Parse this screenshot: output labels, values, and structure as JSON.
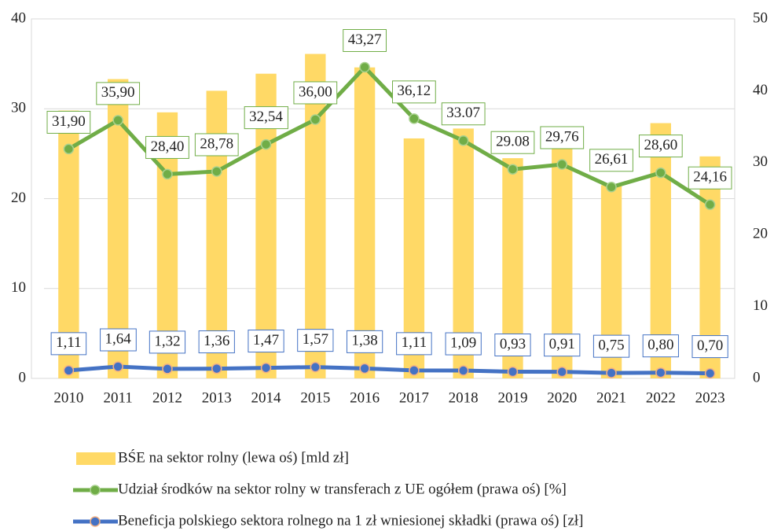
{
  "chart_data": {
    "type": "bar",
    "categories": [
      "2010",
      "2011",
      "2012",
      "2013",
      "2014",
      "2015",
      "2016",
      "2017",
      "2018",
      "2019",
      "2020",
      "2021",
      "2022",
      "2023"
    ],
    "ylim": [
      0,
      40
    ],
    "yticks": [
      0,
      10,
      20,
      30,
      40
    ],
    "y2lim": [
      0,
      50
    ],
    "y2ticks": [
      0,
      10,
      20,
      30,
      40,
      50
    ],
    "grid": true,
    "legend": "bottom",
    "series": [
      {
        "name": "BŚE na sektor rolny (lewa oś) [mld zł]",
        "type": "bar",
        "axis": "y",
        "color": "#ffd966",
        "values": [
          29.8,
          33.3,
          29.6,
          32.0,
          33.9,
          36.1,
          34.6,
          26.7,
          27.8,
          24.5,
          25.7,
          21.5,
          28.4,
          24.7
        ]
      },
      {
        "name": "Udział środków na sektor rolny w transferach z UE ogółem (prawa oś) [%]",
        "type": "line",
        "axis": "y2",
        "color": "#70ad47",
        "values": [
          31.9,
          35.9,
          28.4,
          28.78,
          32.54,
          36.0,
          43.27,
          36.12,
          33.07,
          29.08,
          29.76,
          26.61,
          28.6,
          24.16
        ],
        "value_labels": [
          "31,90",
          "35,90",
          "28,40",
          "28,78",
          "32,54",
          "36,00",
          "43,27",
          "36,12",
          "33.07",
          "29.08",
          "29,76",
          "26,61",
          "28,60",
          "24,16"
        ]
      },
      {
        "name": "Beneficja polskiego sektora rolnego na 1 zł wniesionej składki (prawa oś) [zł]",
        "type": "line",
        "axis": "y2",
        "color": "#4472c4",
        "values": [
          1.11,
          1.64,
          1.32,
          1.36,
          1.47,
          1.57,
          1.38,
          1.11,
          1.09,
          0.93,
          0.91,
          0.75,
          0.8,
          0.7
        ],
        "value_labels": [
          "1,11",
          "1,64",
          "1,32",
          "1,36",
          "1,47",
          "1,57",
          "1,38",
          "1,11",
          "1,09",
          "0,93",
          "0,91",
          "0,75",
          "0,80",
          "0,70"
        ]
      }
    ]
  }
}
